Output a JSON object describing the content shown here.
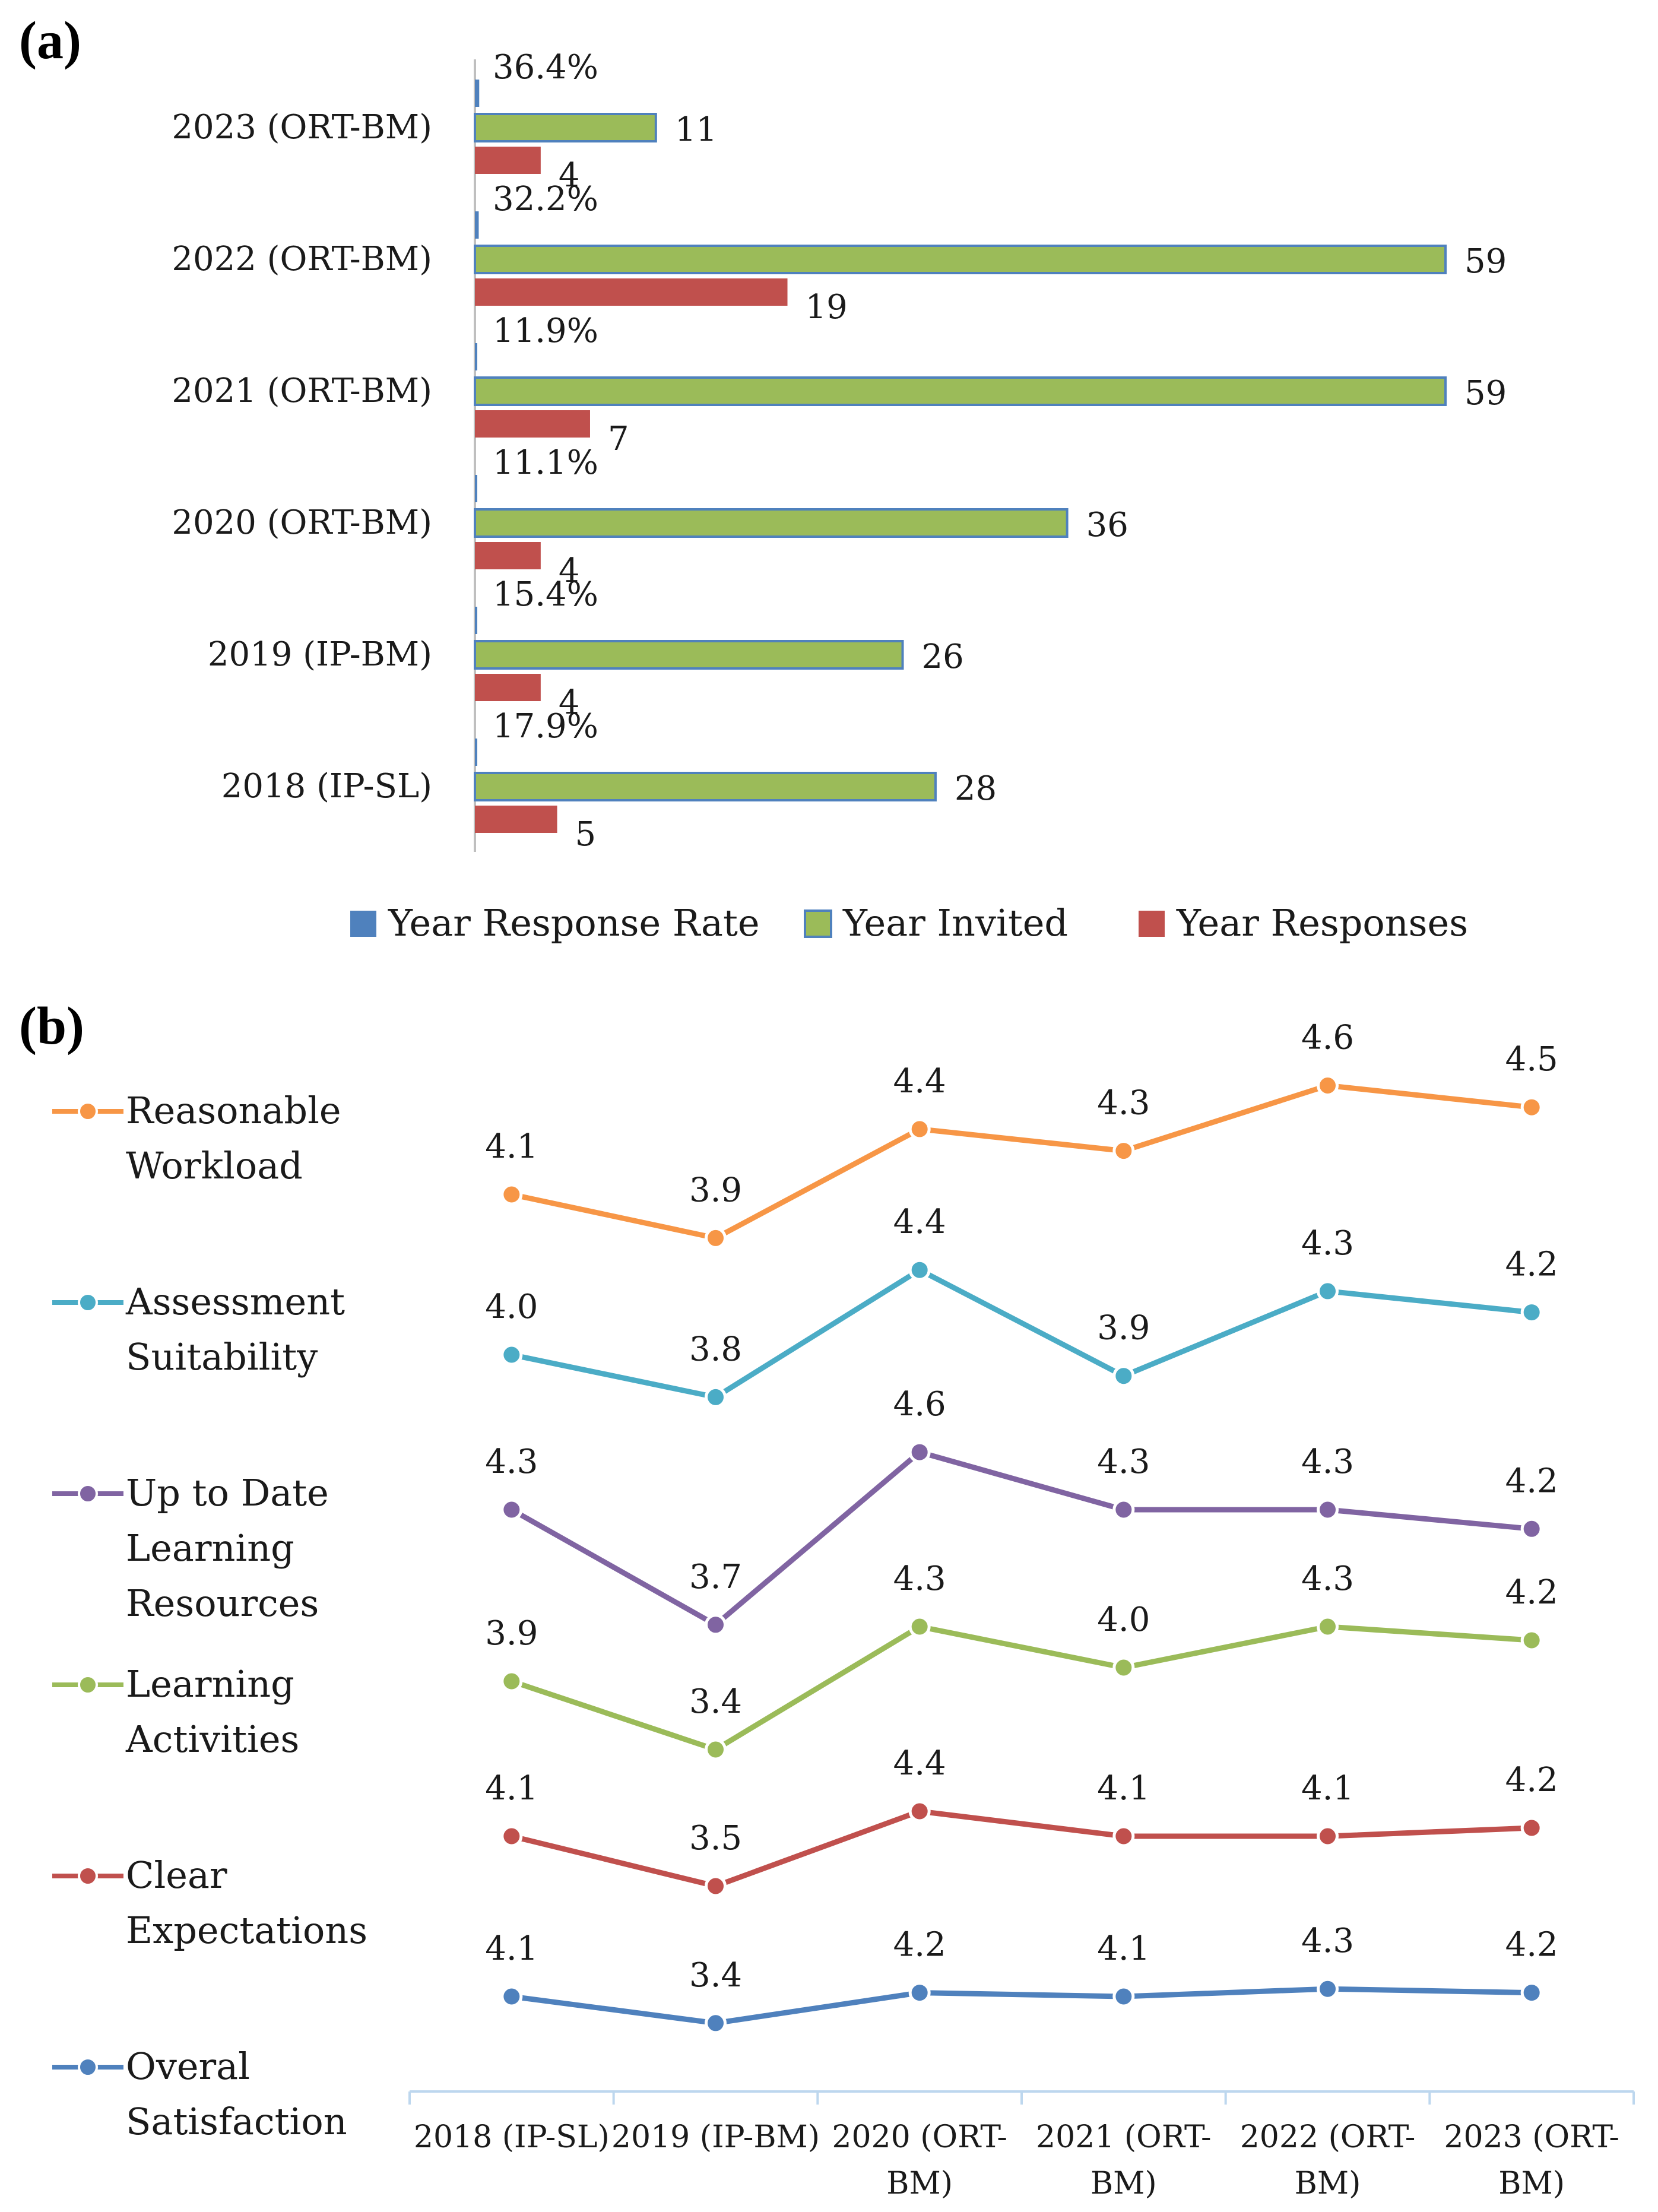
{
  "panel_a_label": "(a)",
  "panel_b_label": "(b)",
  "chart_data": [
    {
      "type": "bar",
      "orientation": "horizontal",
      "categories": [
        "2023 (ORT-BM)",
        "2022 (ORT-BM)",
        "2021 (ORT-BM)",
        "2020 (ORT-BM)",
        "2019 (IP-BM)",
        "2018 (IP-SL)"
      ],
      "series": [
        {
          "name": "Year Response Rate",
          "color": "#4f81bd",
          "values": [
            0.364,
            0.322,
            0.119,
            0.111,
            0.154,
            0.179
          ],
          "labels": [
            "36.4%",
            "32.2%",
            "11.9%",
            "11.1%",
            "15.4%",
            "17.9%"
          ]
        },
        {
          "name": "Year Invited",
          "color": "#9bbb59",
          "values": [
            11,
            59,
            59,
            36,
            26,
            28
          ],
          "labels": [
            "11",
            "59",
            "59",
            "36",
            "26",
            "28"
          ]
        },
        {
          "name": "Year Responses",
          "color": "#c0504d",
          "values": [
            4,
            19,
            7,
            4,
            4,
            5
          ],
          "labels": [
            "4",
            "19",
            "7",
            "4",
            "4",
            "5"
          ]
        }
      ],
      "xlim": [
        0,
        60
      ],
      "legend": "bottom",
      "grid": false
    },
    {
      "type": "line",
      "categories": [
        "2018 (IP-SL)",
        "2019 (IP-BM)",
        "2020 (ORT-BM)",
        "2021 (ORT-BM)",
        "2022 (ORT-BM)",
        "2023 (ORT-BM)"
      ],
      "category_lines": [
        [
          "2018 (IP-SL)"
        ],
        [
          "2019 (IP-BM)"
        ],
        [
          "2020 (ORT-",
          "BM)"
        ],
        [
          "2021 (ORT-",
          "BM)"
        ],
        [
          "2022 (ORT-",
          "BM)"
        ],
        [
          "2023 (ORT-",
          "BM)"
        ]
      ],
      "series": [
        {
          "name": "Reasonable Workload",
          "legend_lines": [
            "Reasonable",
            "Workload"
          ],
          "color": "#f79646",
          "values": [
            4.1,
            3.9,
            4.4,
            4.3,
            4.6,
            4.5
          ],
          "labels": [
            "4.1",
            "3.9",
            "4.4",
            "4.3",
            "4.6",
            "4.5"
          ]
        },
        {
          "name": "Assessment Suitability",
          "legend_lines": [
            "Assessment",
            "Suitability"
          ],
          "color": "#4bacc6",
          "values": [
            4.0,
            3.8,
            4.4,
            3.9,
            4.3,
            4.2
          ],
          "labels": [
            "4.0",
            "3.8",
            "4.4",
            "3.9",
            "4.3",
            "4.2"
          ]
        },
        {
          "name": "Up to Date Learning Resources",
          "legend_lines": [
            "Up to Date",
            "Learning",
            "Resources"
          ],
          "color": "#8064a2",
          "values": [
            4.3,
            3.7,
            4.6,
            4.3,
            4.3,
            4.2
          ],
          "labels": [
            "4.3",
            "3.7",
            "4.6",
            "4.3",
            "4.3",
            "4.2"
          ]
        },
        {
          "name": "Learning Activities",
          "legend_lines": [
            "Learning",
            "Activities"
          ],
          "color": "#9bbb59",
          "values": [
            3.9,
            3.4,
            4.3,
            4.0,
            4.3,
            4.2
          ],
          "labels": [
            "3.9",
            "3.4",
            "4.3",
            "4.0",
            "4.3",
            "4.2"
          ]
        },
        {
          "name": "Clear Expectations",
          "legend_lines": [
            "Clear",
            "Expectations"
          ],
          "color": "#c0504d",
          "values": [
            4.1,
            3.5,
            4.4,
            4.1,
            4.1,
            4.2
          ],
          "labels": [
            "4.1",
            "3.5",
            "4.4",
            "4.1",
            "4.1",
            "4.2"
          ]
        },
        {
          "name": "Overal Satisfaction",
          "legend_lines": [
            "Overal",
            "Satisfaction"
          ],
          "color": "#4f81bd",
          "values": [
            4.1,
            3.4,
            4.2,
            4.1,
            4.3,
            4.2
          ],
          "labels": [
            "4.1",
            "3.4",
            "4.2",
            "4.1",
            "4.3",
            "4.2"
          ]
        }
      ],
      "ylabel": "",
      "legend": "left",
      "grid": false
    }
  ]
}
